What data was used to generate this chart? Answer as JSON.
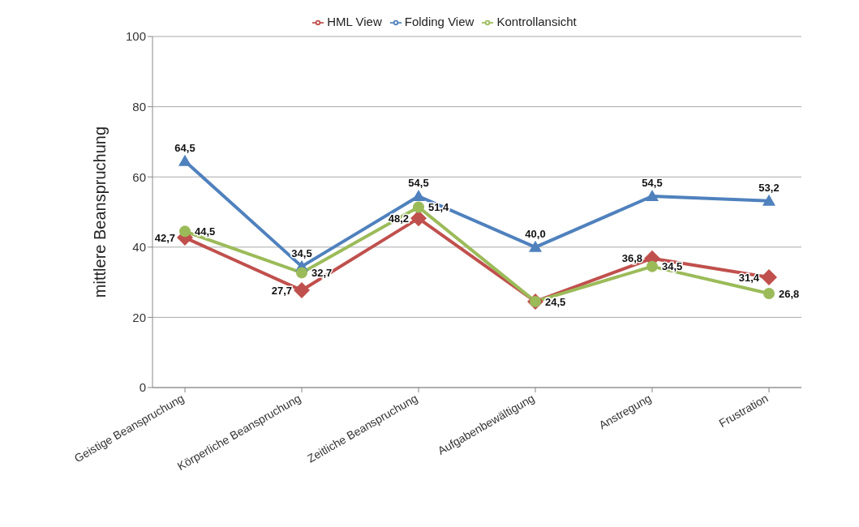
{
  "chart_data": {
    "type": "line",
    "ylabel": "mittlere Beanspruchung",
    "categories": [
      "Geistige Beanspruchung",
      "Körperliche Beanspruchung",
      "Zeitliche Beanspruchung",
      "Aufgabenbewältigung",
      "Anstregung",
      "Frustration"
    ],
    "series": [
      {
        "name": "HML View",
        "color": "#c0504d",
        "marker": "diamond",
        "values": [
          42.7,
          27.7,
          48.2,
          24.5,
          36.8,
          31.4
        ],
        "value_labels": [
          "42,7",
          "27,7",
          "48,2",
          null,
          "36,8",
          "31,4"
        ]
      },
      {
        "name": "Folding View",
        "color": "#4f81bd",
        "marker": "triangle",
        "values": [
          64.5,
          34.5,
          54.5,
          40.0,
          54.5,
          53.2
        ],
        "value_labels": [
          "64,5",
          "34,5",
          "54,5",
          "40,0",
          "54,5",
          "53,2"
        ]
      },
      {
        "name": "Kontrollansicht",
        "color": "#9bbb59",
        "marker": "circle",
        "values": [
          44.5,
          32.7,
          51.4,
          24.5,
          34.5,
          26.8
        ],
        "value_labels": [
          "44,5",
          "32,7",
          "51,4",
          "24,5",
          "34,5",
          "26,8"
        ]
      }
    ],
    "ylim": [
      0,
      100
    ],
    "yticks": [
      0,
      20,
      40,
      60,
      80,
      100
    ],
    "grid": "y",
    "legend": "top"
  }
}
